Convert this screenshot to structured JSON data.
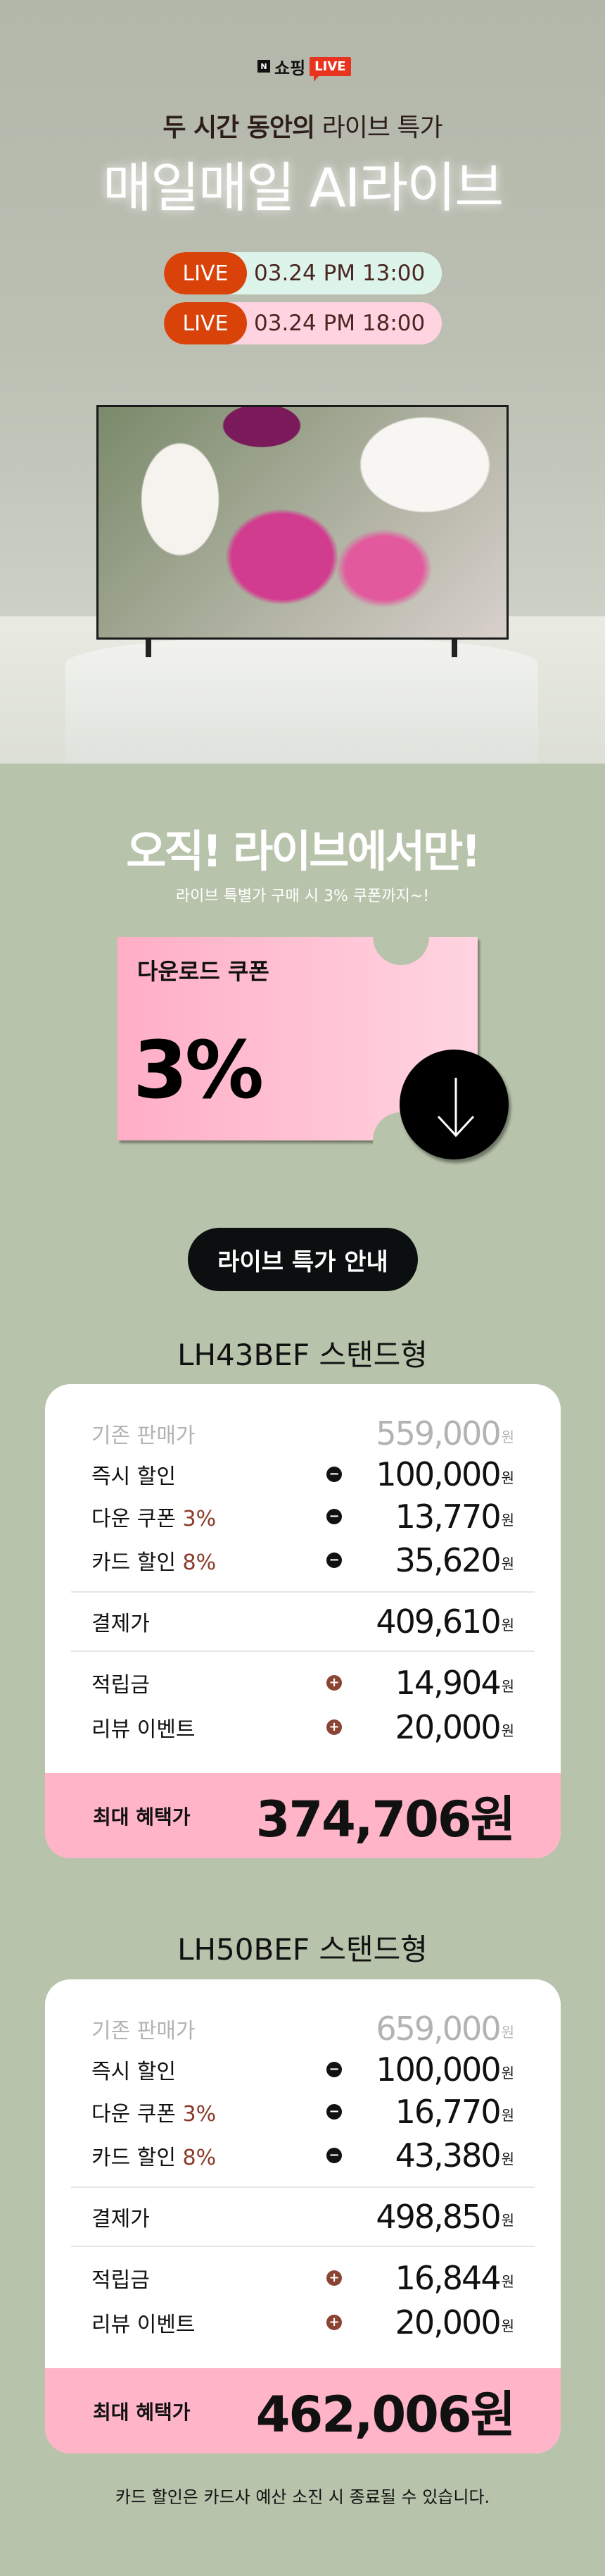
{
  "header": {
    "logo_n": "N",
    "logo_shop": "쇼핑",
    "logo_live": "LIVE"
  },
  "hero": {
    "subtitle_bold": "두 시간 동안의",
    "subtitle_light": "라이브 특가",
    "title": "매일매일 AI라이브",
    "schedule": [
      {
        "tag": "LIVE",
        "time": "03.24 PM 13:00",
        "color": "#ddf4ea"
      },
      {
        "tag": "LIVE",
        "time": "03.24 PM 18:00",
        "color": "#ffd3df"
      }
    ]
  },
  "promo": {
    "headline": "오직! 라이브에서만!",
    "subline": "라이브 특별가 구매 시 3% 쿠폰까지~!",
    "coupon": {
      "label": "다운로드 쿠폰",
      "value": "3%",
      "icon": "download-arrow-icon"
    }
  },
  "guide_button": "라이브 특가 안내",
  "products": [
    {
      "title": "LH43BEF 스탠드형",
      "rows": [
        {
          "type": "orig",
          "label": "기존 판매가",
          "amount": "559,000",
          "unit": "원"
        },
        {
          "type": "minus",
          "label": "즉시 할인",
          "amount": "100,000",
          "unit": "원"
        },
        {
          "type": "minus",
          "label": "다운 쿠폰",
          "highlight": "3%",
          "amount": "13,770",
          "unit": "원"
        },
        {
          "type": "minus",
          "label": "카드 할인",
          "highlight": "8%",
          "amount": "35,620",
          "unit": "원"
        },
        {
          "type": "total",
          "label": "결제가",
          "amount": "409,610",
          "unit": "원"
        },
        {
          "type": "plus",
          "label": "적립금",
          "amount": "14,904",
          "unit": "원"
        },
        {
          "type": "plus",
          "label": "리뷰 이벤트",
          "amount": "20,000",
          "unit": "원"
        }
      ],
      "final": {
        "label": "최대 혜택가",
        "amount": "374,706원"
      }
    },
    {
      "title": "LH50BEF 스탠드형",
      "rows": [
        {
          "type": "orig",
          "label": "기존 판매가",
          "amount": "659,000",
          "unit": "원"
        },
        {
          "type": "minus",
          "label": "즉시 할인",
          "amount": "100,000",
          "unit": "원"
        },
        {
          "type": "minus",
          "label": "다운 쿠폰",
          "highlight": "3%",
          "amount": "16,770",
          "unit": "원"
        },
        {
          "type": "minus",
          "label": "카드 할인",
          "highlight": "8%",
          "amount": "43,380",
          "unit": "원"
        },
        {
          "type": "total",
          "label": "결제가",
          "amount": "498,850",
          "unit": "원"
        },
        {
          "type": "plus",
          "label": "적립금",
          "amount": "16,844",
          "unit": "원"
        },
        {
          "type": "plus",
          "label": "리뷰 이벤트",
          "amount": "20,000",
          "unit": "원"
        }
      ],
      "final": {
        "label": "최대 혜택가",
        "amount": "462,006원"
      }
    }
  ],
  "footnote": "카드 할인은 카드사 예산 소진 시 종료될 수 있습니다.",
  "colors": {
    "background": "#b8c3ab",
    "final_band": "#ffb4c8",
    "accent_brown": "#8b3a2a",
    "live_red": "#d94208"
  }
}
